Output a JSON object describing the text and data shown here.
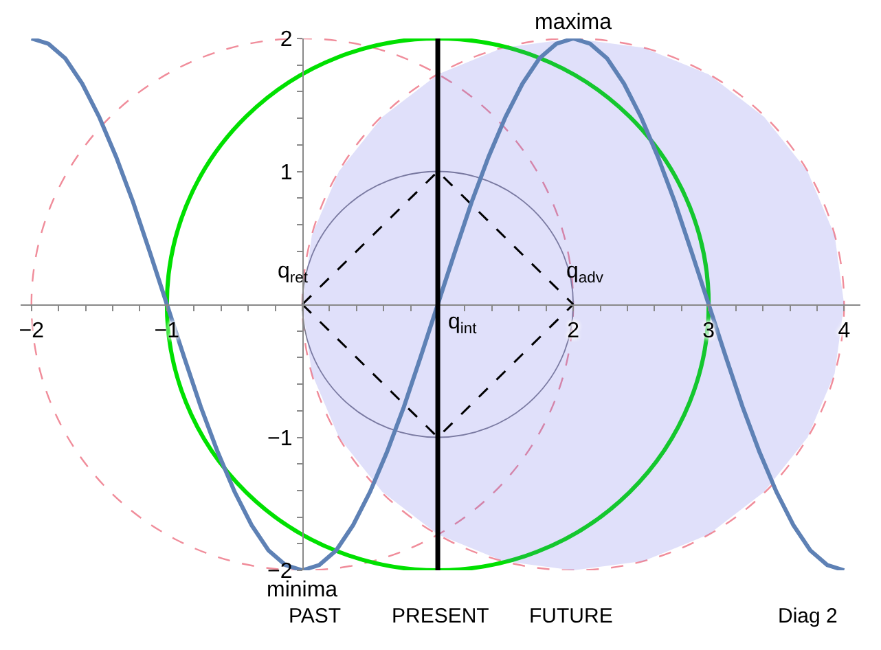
{
  "chart_data": {
    "type": "line",
    "xlim": [
      -2.08,
      4.12
    ],
    "ylim": [
      -2,
      2
    ],
    "xticks": [
      -2,
      {
        "value": -1.8,
        "label": null
      },
      {
        "value": -1.6,
        "label": null
      },
      {
        "value": -1.4,
        "label": null
      },
      {
        "value": -1.2,
        "label": null
      },
      -1,
      {
        "value": -0.8,
        "label": null
      },
      {
        "value": -0.6,
        "label": null
      },
      {
        "value": -0.4,
        "label": null
      },
      {
        "value": -0.2,
        "label": null
      },
      {
        "value": 0,
        "label": null
      },
      {
        "value": 0.2,
        "label": null
      },
      {
        "value": 0.4,
        "label": null
      },
      {
        "value": 0.6,
        "label": null
      },
      {
        "value": 0.8,
        "label": null
      },
      {
        "value": 1,
        "label": null
      },
      {
        "value": 1.2,
        "label": null
      },
      {
        "value": 1.4,
        "label": null
      },
      {
        "value": 1.6,
        "label": null
      },
      {
        "value": 1.8,
        "label": null
      },
      2,
      {
        "value": 2.2,
        "label": null
      },
      {
        "value": 2.4,
        "label": null
      },
      {
        "value": 2.6,
        "label": null
      },
      {
        "value": 2.8,
        "label": null
      },
      3,
      {
        "value": 3.2,
        "label": null
      },
      {
        "value": 3.4,
        "label": null
      },
      {
        "value": 3.6,
        "label": null
      },
      {
        "value": 3.8,
        "label": null
      },
      4
    ],
    "yticks": [
      -2,
      {
        "value": -1.8,
        "label": null
      },
      {
        "value": -1.6,
        "label": null
      },
      {
        "value": -1.4,
        "label": null
      },
      {
        "value": -1.2,
        "label": null
      },
      -1,
      {
        "value": -0.8,
        "label": null
      },
      {
        "value": -0.6,
        "label": null
      },
      {
        "value": -0.4,
        "label": null
      },
      {
        "value": -0.2,
        "label": null
      },
      {
        "value": 0.2,
        "label": null
      },
      {
        "value": 0.4,
        "label": null
      },
      {
        "value": 0.6,
        "label": null
      },
      {
        "value": 0.8,
        "label": null
      },
      1,
      {
        "value": 1.2,
        "label": null
      },
      {
        "value": 1.4,
        "label": null
      },
      {
        "value": 1.6,
        "label": null
      },
      {
        "value": 1.8,
        "label": null
      },
      2
    ],
    "grid": false,
    "marker": "none",
    "series": [
      {
        "type": "area",
        "color": "#e0e0fa",
        "x": [
          4,
          3.93,
          3.73,
          3.41,
          3,
          2.52,
          2,
          1.48,
          1,
          0.59,
          0.27,
          0.07,
          0,
          0.07,
          0.27,
          0.59,
          1,
          1.48,
          2,
          2.52,
          3,
          3.41,
          3.73,
          3.93,
          4
        ],
        "values": [
          0,
          0.52,
          1,
          1.41,
          1.73,
          1.93,
          2,
          1.93,
          1.73,
          1.41,
          1,
          0.52,
          0,
          -0.52,
          -1,
          -1.41,
          -1.73,
          -1.93,
          -2,
          -1.93,
          -1.73,
          -1.41,
          -1,
          -0.52,
          0
        ]
      },
      {
        "color": "#000000",
        "line_style": "dashed",
        "x": [
          0,
          1,
          2
        ],
        "values": [
          0,
          1,
          0
        ]
      },
      {
        "color": "#000000",
        "line_style": "dashed",
        "x": [
          0,
          1,
          2
        ],
        "values": [
          0,
          -1,
          0
        ]
      },
      {
        "color": "#5e81b5",
        "line_style": "solid",
        "x": [
          -2,
          -1.875,
          -1.75,
          -1.625,
          -1.5,
          -1.375,
          -1.25,
          -1.125,
          -1,
          -0.875,
          -0.75,
          -0.625,
          -0.5,
          -0.375,
          -0.25,
          -0.125,
          0,
          0.125,
          0.25,
          0.375,
          0.5,
          0.625,
          0.75,
          0.875,
          1,
          1.125,
          1.25,
          1.375,
          1.5,
          1.625,
          1.75,
          1.875,
          2,
          2.125,
          2.25,
          2.375,
          2.5,
          2.625,
          2.75,
          2.875,
          3,
          3.125,
          3.25,
          3.375,
          3.5,
          3.625,
          3.75,
          3.875,
          4
        ],
        "values": [
          2,
          1.96,
          1.85,
          1.66,
          1.41,
          1.11,
          0.77,
          0.39,
          0,
          -0.39,
          -0.77,
          -1.11,
          -1.41,
          -1.66,
          -1.85,
          -1.96,
          -2,
          -1.96,
          -1.85,
          -1.66,
          -1.41,
          -1.11,
          -0.77,
          -0.39,
          0,
          0.39,
          0.77,
          1.11,
          1.41,
          1.66,
          1.85,
          1.96,
          2,
          1.96,
          1.85,
          1.66,
          1.41,
          1.11,
          0.77,
          0.39,
          0,
          -0.39,
          -0.77,
          -1.11,
          -1.41,
          -1.66,
          -1.85,
          -1.96,
          -2
        ]
      }
    ],
    "ref_lines": [
      {
        "axis": "x",
        "value": 1,
        "color": "#000000",
        "line_style": "solid"
      }
    ],
    "annotations": [
      "q$_{ret}$",
      "q$_{adv}$",
      {
        "text": "q$_{int}$",
        "x": 1,
        "y": 0
      },
      {
        "text": "maxima",
        "x": 2,
        "y": 2
      },
      {
        "text": "minima",
        "x": 0,
        "y": -2
      },
      "PAST",
      "PRESENT",
      "FUTURE",
      "Diag 2"
    ]
  }
}
